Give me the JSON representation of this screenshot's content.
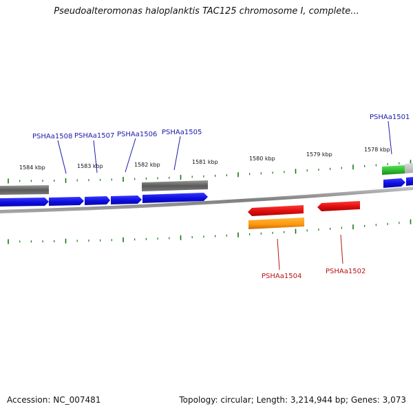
{
  "title": "Pseudoalteromonas haloplanktis TAC125 chromosome I, complete...",
  "accession": "Accession: NC_007481",
  "summary": "Topology: circular; Length: 3,214,944 bp; Genes: 3,073",
  "colors": {
    "forward": "#1010ee",
    "reverse": "#ee1111",
    "grey": "#6e6e6e",
    "orange": "#ff9a10",
    "green": "#33bb33",
    "tick": "#117711",
    "backbone": "#8c8c8c"
  },
  "scale_labels": [
    "1584 kbp",
    "1583 kbp",
    "1582 kbp",
    "1581 kbp",
    "1580 kbp",
    "1579 kbp",
    "1578 kbp"
  ],
  "gene_labels": [
    {
      "text": "PSHAa1508",
      "strand": "forward"
    },
    {
      "text": "PSHAa1507",
      "strand": "forward"
    },
    {
      "text": "PSHAa1506",
      "strand": "forward"
    },
    {
      "text": "PSHAa1505",
      "strand": "forward"
    },
    {
      "text": "PSHAa1501",
      "strand": "forward"
    },
    {
      "text": "PSHAa1504",
      "strand": "reverse"
    },
    {
      "text": "PSHAa1502",
      "strand": "reverse"
    }
  ]
}
